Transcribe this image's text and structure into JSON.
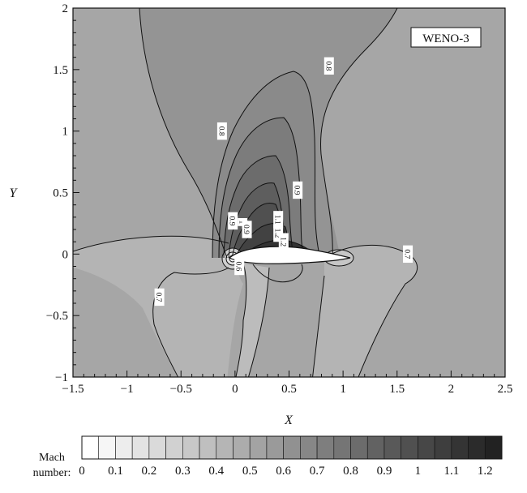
{
  "chart_data": {
    "type": "heatmap",
    "subtype": "filled-contour",
    "annotation": "WENO-3",
    "xlabel": "X",
    "ylabel": "Y",
    "xlim": [
      -1.5,
      2.5
    ],
    "ylim": [
      -1,
      2
    ],
    "x_ticks": [
      "−1.5",
      "−1",
      "−0.5",
      "0",
      "0.5",
      "1",
      "1.5",
      "2",
      "2.5"
    ],
    "x_tick_values": [
      -1.5,
      -1,
      -0.5,
      0,
      0.5,
      1,
      1.5,
      2,
      2.5
    ],
    "y_ticks": [
      "−1",
      "−0.5",
      "0",
      "0.5",
      "1",
      "1.5",
      "2"
    ],
    "y_tick_values": [
      -1,
      -0.5,
      0,
      0.5,
      1,
      1.5,
      2
    ],
    "colorbar": {
      "title": [
        "Mach",
        "number:"
      ],
      "levels": [
        0,
        0.05,
        0.1,
        0.15,
        0.2,
        0.25,
        0.3,
        0.35,
        0.4,
        0.45,
        0.5,
        0.55,
        0.6,
        0.65,
        0.7,
        0.75,
        0.8,
        0.85,
        0.9,
        0.95,
        1,
        1.05,
        1.1,
        1.15,
        1.2,
        1.25
      ],
      "tick_labels": [
        "0",
        "0.1",
        "0.2",
        "0.3",
        "0.4",
        "0.5",
        "0.6",
        "0.7",
        "0.8",
        "0.9",
        "1",
        "1.1",
        "1.2"
      ],
      "tick_values": [
        0,
        0.1,
        0.2,
        0.3,
        0.4,
        0.5,
        0.6,
        0.7,
        0.8,
        0.9,
        1,
        1.1,
        1.2
      ],
      "color_light": "#ffffff",
      "color_dark": "#222222"
    },
    "contour_labels": [
      {
        "text": "0.8",
        "x": 0.87,
        "y": 1.53
      },
      {
        "text": "0.8",
        "x": -0.12,
        "y": 1.0
      },
      {
        "text": "0.9",
        "x": 0.58,
        "y": 0.52
      },
      {
        "text": "0.9",
        "x": -0.02,
        "y": 0.27
      },
      {
        "text": "1",
        "x": 0.07,
        "y": 0.26
      },
      {
        "text": "0.9",
        "x": 0.11,
        "y": 0.2
      },
      {
        "text": "1.1",
        "x": 0.4,
        "y": 0.28
      },
      {
        "text": "1.2",
        "x": 0.4,
        "y": 0.17
      },
      {
        "text": "1.2",
        "x": 0.45,
        "y": 0.1
      },
      {
        "text": "0.7",
        "x": 1.6,
        "y": 0.0
      },
      {
        "text": "0.7",
        "x": -0.7,
        "y": -0.35
      },
      {
        "text": "0.6",
        "x": 0.04,
        "y": -0.1
      }
    ]
  }
}
